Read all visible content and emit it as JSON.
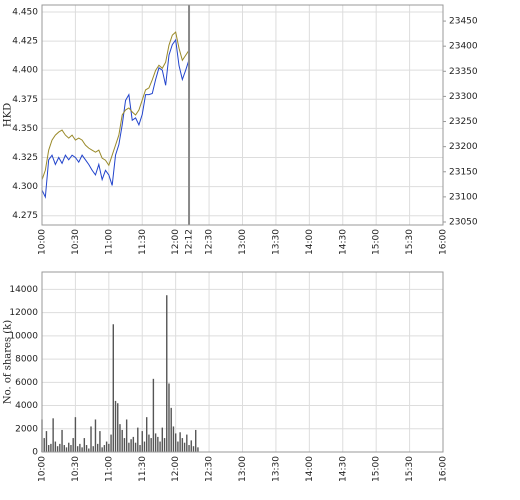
{
  "chart_data": [
    {
      "type": "line",
      "ylabel": "HKD",
      "grid": true,
      "x": [
        "10:00",
        "10:03",
        "10:06",
        "10:09",
        "10:12",
        "10:15",
        "10:18",
        "10:21",
        "10:24",
        "10:27",
        "10:30",
        "10:33",
        "10:36",
        "10:39",
        "10:42",
        "10:45",
        "10:48",
        "10:51",
        "10:54",
        "10:57",
        "11:00",
        "11:03",
        "11:06",
        "11:09",
        "11:12",
        "11:15",
        "11:18",
        "11:21",
        "11:24",
        "11:27",
        "11:30",
        "11:33",
        "11:36",
        "11:39",
        "11:42",
        "11:45",
        "11:48",
        "11:51",
        "11:54",
        "11:57",
        "12:00",
        "12:03",
        "12:06",
        "12:09",
        "12:12"
      ],
      "series": [
        {
          "color": "#2244cc",
          "values": [
            4.297,
            4.291,
            4.323,
            4.327,
            4.319,
            4.325,
            4.32,
            4.327,
            4.323,
            4.327,
            4.325,
            4.321,
            4.327,
            4.323,
            4.319,
            4.314,
            4.31,
            4.319,
            4.306,
            4.314,
            4.31,
            4.301,
            4.327,
            4.336,
            4.353,
            4.374,
            4.379,
            4.357,
            4.359,
            4.353,
            4.362,
            4.379,
            4.379,
            4.38,
            4.392,
            4.402,
            4.4,
            4.387,
            4.413,
            4.422,
            4.426,
            4.404,
            4.392,
            4.4,
            4.409
          ]
        },
        {
          "color": "#9a8a2a",
          "axis": "y2",
          "values": [
            23134,
            23153,
            23193,
            23213,
            23223,
            23229,
            23233,
            23223,
            23217,
            23223,
            23213,
            23217,
            23213,
            23203,
            23197,
            23193,
            23189,
            23193,
            23177,
            23173,
            23163,
            23183,
            23203,
            23223,
            23263,
            23273,
            23277,
            23269,
            23263,
            23273,
            23293,
            23313,
            23317,
            23333,
            23352,
            23362,
            23356,
            23368,
            23402,
            23422,
            23428,
            23396,
            23372,
            23382,
            23392
          ]
        }
      ],
      "xlim": [
        "10:00",
        "16:00"
      ],
      "xticks": [
        "10:00",
        "10:30",
        "11:00",
        "11:30",
        "12:00",
        "12:12",
        "12:30",
        "13:00",
        "13:30",
        "14:00",
        "14:30",
        "15:00",
        "15:30",
        "16:00"
      ],
      "cursor": "12:12",
      "ylim": [
        4.267,
        4.456
      ],
      "yticks": [
        4.275,
        {
          "value": 4.3,
          "label": "4.300"
        },
        4.325,
        {
          "value": 4.35,
          "label": "4.350"
        },
        4.375,
        {
          "value": 4.4,
          "label": "4.400"
        },
        4.425,
        {
          "value": 4.45,
          "label": "4.450"
        }
      ],
      "y2lim": [
        23044,
        23482
      ],
      "y2ticks": [
        23050,
        23100,
        23150,
        23200,
        23250,
        23300,
        23350,
        23400,
        23450
      ]
    },
    {
      "type": "bar",
      "ylabel": "No. of shares (k)",
      "grid": true,
      "color": "#555555",
      "x": [
        "10:00",
        "10:02",
        "10:04",
        "10:06",
        "10:08",
        "10:10",
        "10:12",
        "10:14",
        "10:16",
        "10:18",
        "10:20",
        "10:22",
        "10:24",
        "10:26",
        "10:28",
        "10:30",
        "10:32",
        "10:34",
        "10:36",
        "10:38",
        "10:40",
        "10:42",
        "10:44",
        "10:46",
        "10:48",
        "10:50",
        "10:52",
        "10:54",
        "10:56",
        "10:58",
        "11:00",
        "11:02",
        "11:04",
        "11:06",
        "11:08",
        "11:10",
        "11:12",
        "11:14",
        "11:16",
        "11:18",
        "11:20",
        "11:22",
        "11:24",
        "11:26",
        "11:28",
        "11:30",
        "11:32",
        "11:34",
        "11:36",
        "11:38",
        "11:40",
        "11:42",
        "11:44",
        "11:46",
        "11:48",
        "11:50",
        "11:52",
        "11:54",
        "11:56",
        "11:58",
        "12:00",
        "12:02",
        "12:04",
        "12:06",
        "12:08",
        "12:10",
        "12:12",
        "12:14",
        "12:16",
        "12:18",
        "12:20"
      ],
      "values": [
        2800,
        1200,
        1800,
        600,
        700,
        2900,
        900,
        500,
        700,
        1900,
        600,
        400,
        800,
        600,
        1200,
        3000,
        500,
        700,
        400,
        1200,
        600,
        300,
        2200,
        500,
        2800,
        700,
        1800,
        400,
        600,
        900,
        700,
        1500,
        11000,
        4400,
        4200,
        2400,
        1900,
        1200,
        2800,
        800,
        1100,
        1300,
        800,
        2100,
        600,
        1800,
        900,
        3000,
        1500,
        1200,
        6300,
        1600,
        1300,
        900,
        2100,
        1200,
        13500,
        5900,
        3800,
        2200,
        1600,
        900,
        1700,
        1200,
        800,
        1500,
        600,
        1000,
        500,
        1900,
        400
      ],
      "xlim": [
        "10:00",
        "16:00"
      ],
      "xticks": [
        "10:00",
        "10:30",
        "11:00",
        "11:30",
        "12:00",
        "12:30",
        "13:00",
        "13:30",
        "14:00",
        "14:30",
        "15:00",
        "15:30",
        "16:00"
      ],
      "ylim": [
        0,
        15500
      ],
      "yticks": [
        0,
        2000,
        4000,
        6000,
        8000,
        10000,
        12000,
        14000
      ]
    }
  ]
}
